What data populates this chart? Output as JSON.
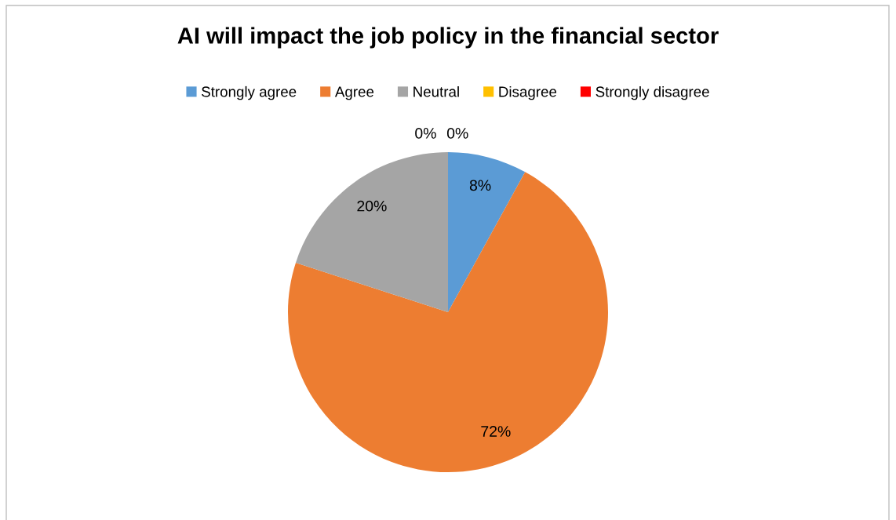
{
  "chart_data": {
    "type": "pie",
    "title": "AI will impact the job policy in the financial sector",
    "categories": [
      "Strongly agree",
      "Agree",
      "Neutral",
      "Disagree",
      "Strongly disagree"
    ],
    "values": [
      8,
      72,
      20,
      0,
      0
    ],
    "colors": [
      "#5b9bd5",
      "#ed7d31",
      "#a5a5a5",
      "#ffc000",
      "#ff0000"
    ],
    "value_labels": [
      "8%",
      "72%",
      "20%",
      "0%",
      "0%"
    ],
    "legend": "top"
  }
}
